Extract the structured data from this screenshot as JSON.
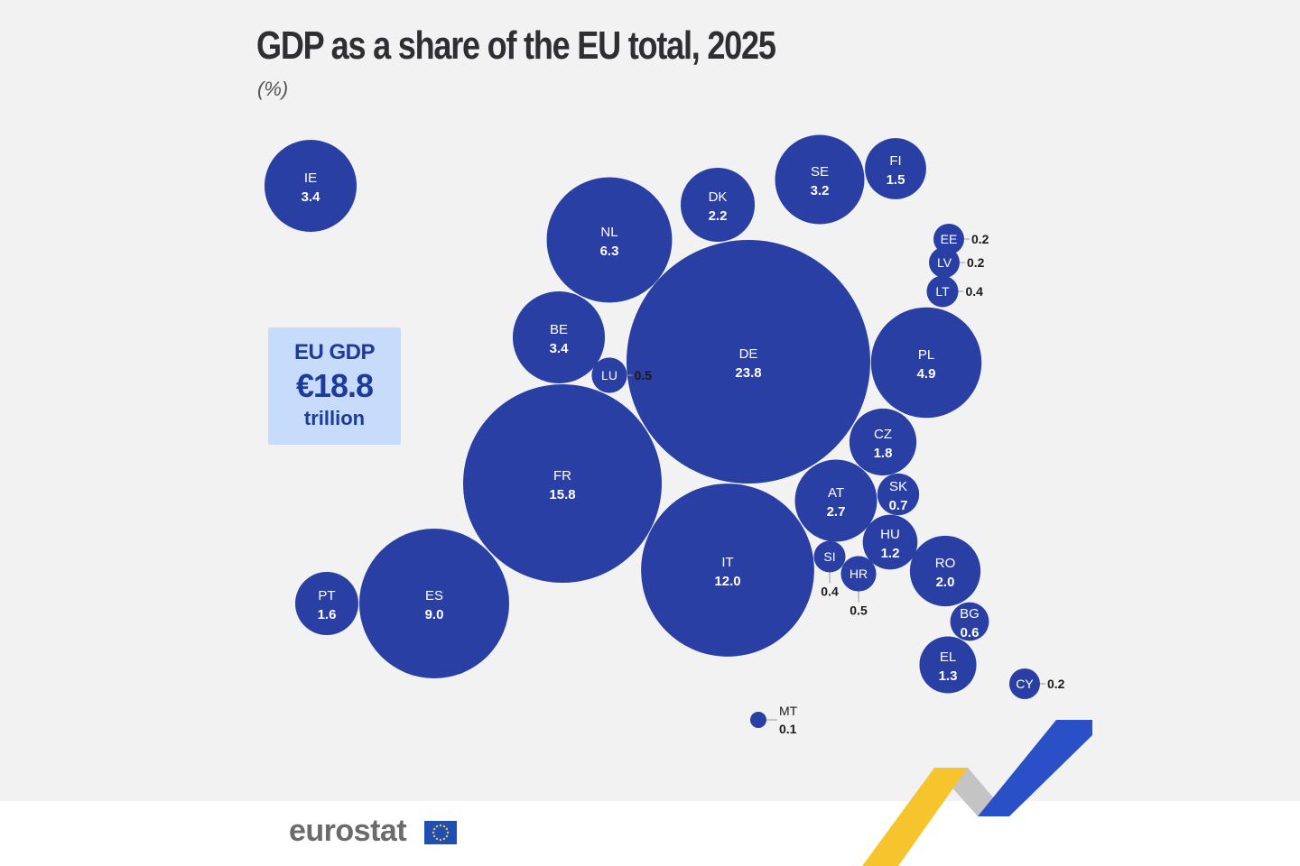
{
  "header": {
    "title": "GDP as a share of the EU total, 2025",
    "subtitle": "(%)"
  },
  "total_box": {
    "line1": "EU GDP",
    "line2": "€18.8",
    "line3": "trillion"
  },
  "footer": {
    "logo_text": "eurostat",
    "flag_icon": "eu-flag-icon"
  },
  "colors": {
    "bubble": "#2a3fa3",
    "total_box_bg": "#c6dcfa",
    "total_box_text": "#1f3a9c",
    "swoosh_yellow": "#f6c52e",
    "swoosh_blue": "#2a50c8",
    "swoosh_grey": "#c4c4c4"
  },
  "chart_data": {
    "type": "bubble-map",
    "unit": "%",
    "series": [
      {
        "code": "DE",
        "value": 23.8
      },
      {
        "code": "FR",
        "value": 15.8
      },
      {
        "code": "IT",
        "value": 12.0
      },
      {
        "code": "ES",
        "value": 9.0
      },
      {
        "code": "NL",
        "value": 6.3
      },
      {
        "code": "PL",
        "value": 4.9
      },
      {
        "code": "IE",
        "value": 3.4
      },
      {
        "code": "BE",
        "value": 3.4
      },
      {
        "code": "SE",
        "value": 3.2
      },
      {
        "code": "AT",
        "value": 2.7
      },
      {
        "code": "DK",
        "value": 2.2
      },
      {
        "code": "RO",
        "value": 2.0
      },
      {
        "code": "CZ",
        "value": 1.8
      },
      {
        "code": "PT",
        "value": 1.6
      },
      {
        "code": "FI",
        "value": 1.5
      },
      {
        "code": "EL",
        "value": 1.3
      },
      {
        "code": "HU",
        "value": 1.2
      },
      {
        "code": "SK",
        "value": 0.7
      },
      {
        "code": "BG",
        "value": 0.6
      },
      {
        "code": "LU",
        "value": 0.5
      },
      {
        "code": "HR",
        "value": 0.5
      },
      {
        "code": "LT",
        "value": 0.4
      },
      {
        "code": "SI",
        "value": 0.4
      },
      {
        "code": "EE",
        "value": 0.2
      },
      {
        "code": "LV",
        "value": 0.2
      },
      {
        "code": "CY",
        "value": 0.2
      },
      {
        "code": "MT",
        "value": 0.1
      }
    ]
  }
}
